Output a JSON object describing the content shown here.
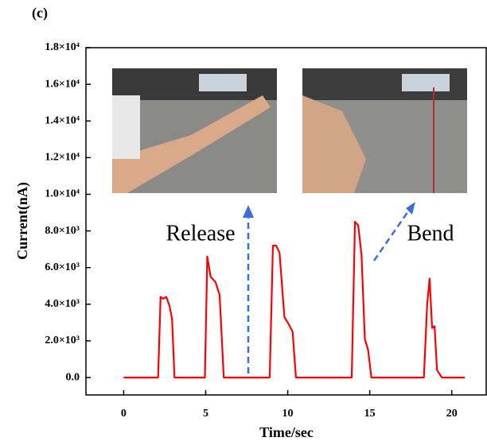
{
  "chart_data": {
    "type": "line",
    "panel_label": "(c)",
    "xlabel": "Time/sec",
    "ylabel": "Current(nA)",
    "annotations": [
      "Release",
      "Bend"
    ],
    "x": [
      0,
      2.1,
      2.25,
      2.4,
      2.6,
      2.8,
      2.95,
      3.1,
      4.95,
      5.1,
      5.3,
      5.6,
      5.85,
      6.1,
      8.9,
      9.1,
      9.3,
      9.5,
      9.8,
      10.0,
      10.3,
      10.5,
      13.9,
      14.1,
      14.3,
      14.5,
      14.7,
      14.9,
      15.1,
      18.3,
      18.5,
      18.65,
      18.8,
      18.95,
      19.1,
      19.4,
      20.8
    ],
    "series": [
      {
        "color": "#ff0000",
        "values": [
          0,
          0,
          4400,
          4300,
          4400,
          3900,
          3200,
          0,
          0,
          6600,
          5500,
          5200,
          4500,
          0,
          0,
          7200,
          7200,
          6800,
          3300,
          3000,
          2500,
          0,
          0,
          8500,
          8300,
          6700,
          2100,
          1500,
          0,
          0,
          4000,
          5400,
          2700,
          2800,
          400,
          0,
          0
        ]
      }
    ],
    "xlim": [
      -2.3,
      22.1
    ],
    "ylim": [
      -950,
      18000
    ],
    "xticks": [
      0,
      5,
      10,
      15,
      20
    ],
    "yticks": [
      {
        "value": 0,
        "label": "0.0"
      },
      {
        "value": 2000,
        "label": "2.0×10³"
      },
      {
        "value": 4000,
        "label": "4.0×10³"
      },
      {
        "value": 6000,
        "label": "6.0×10³"
      },
      {
        "value": 8000,
        "label": "8.0×10³"
      },
      {
        "value": 10000,
        "label": "1.0×10⁴"
      },
      {
        "value": 12000,
        "label": "1.2×10⁴"
      },
      {
        "value": 14000,
        "label": "1.4×10⁴"
      },
      {
        "value": 16000,
        "label": "1.6×10⁴"
      },
      {
        "value": 18000,
        "label": "1.8×10⁴"
      }
    ]
  }
}
